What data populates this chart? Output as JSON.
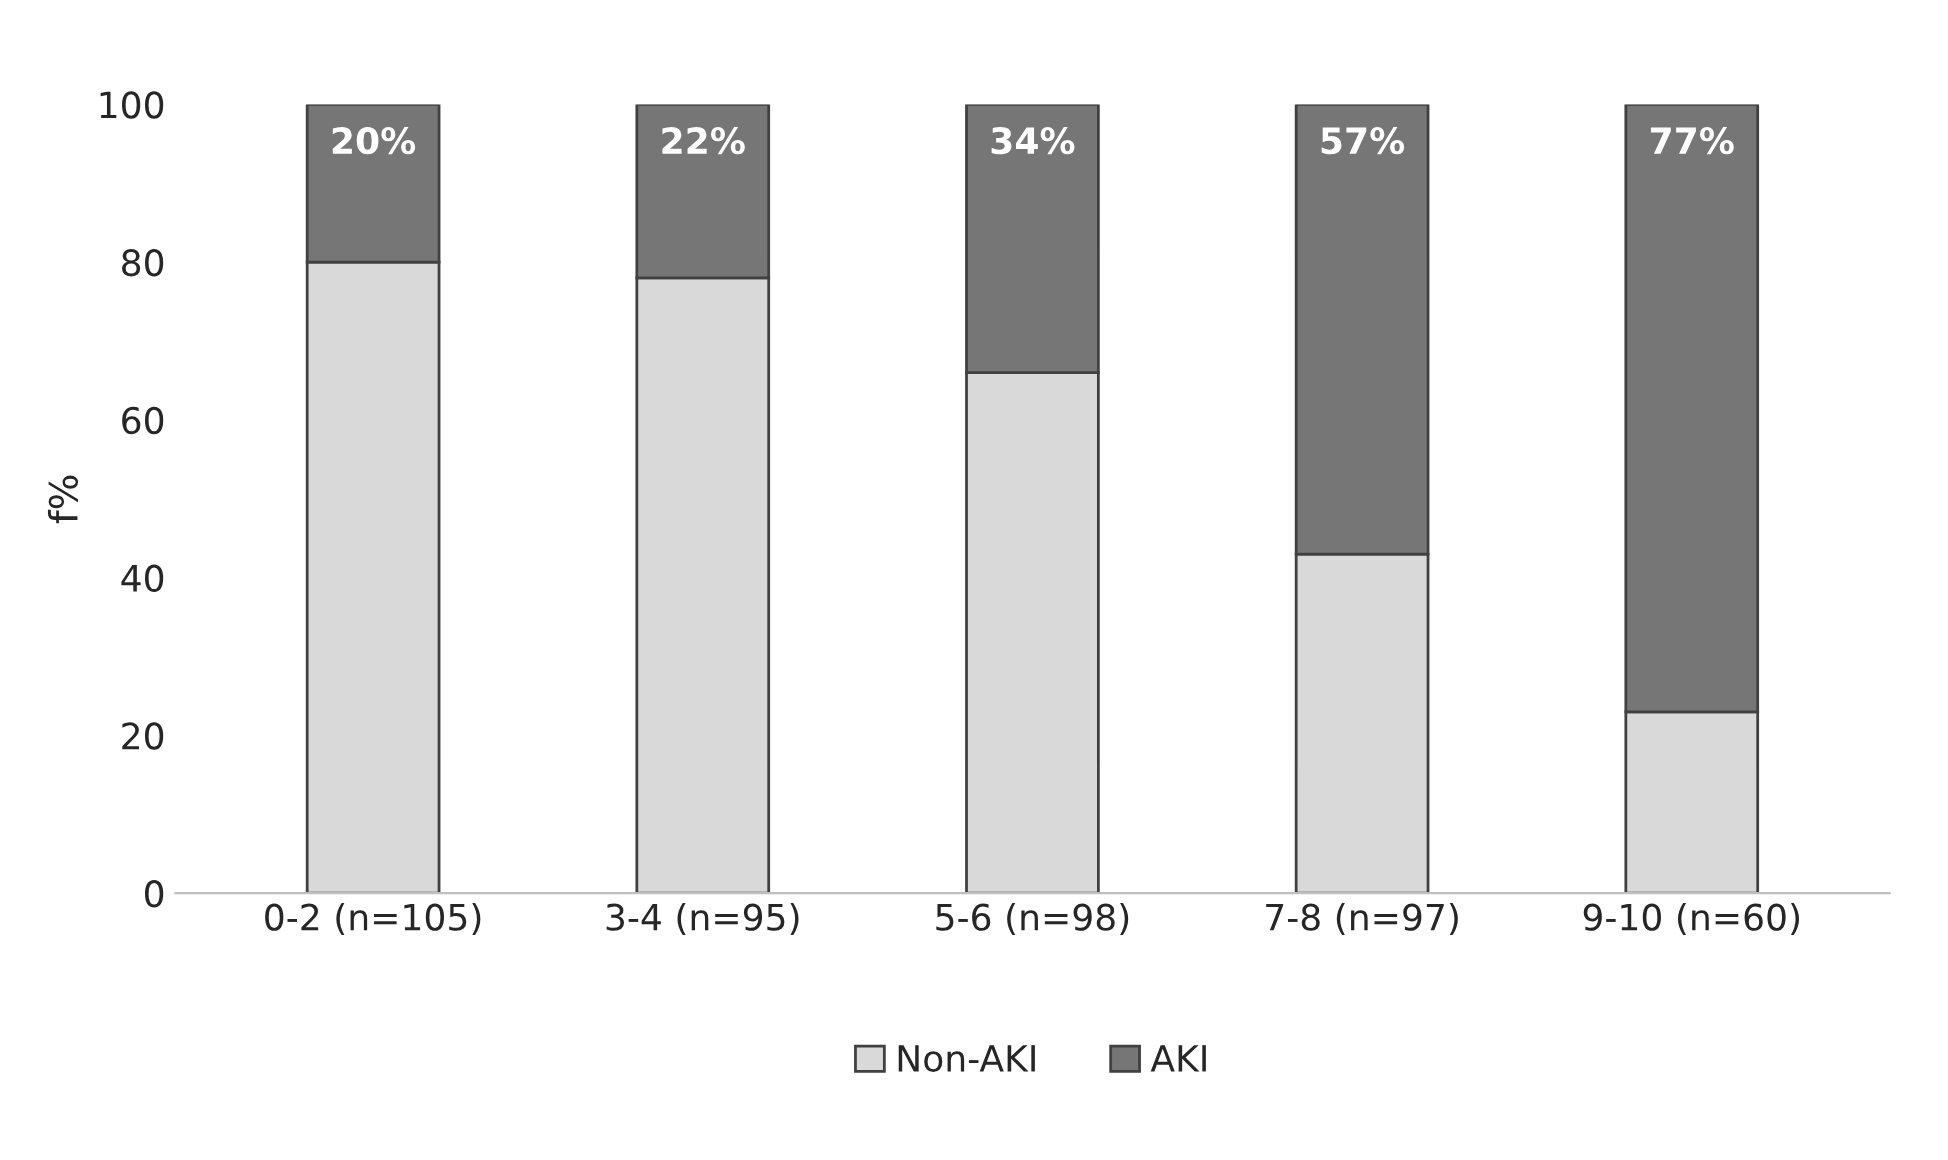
{
  "chart_data": {
    "type": "bar",
    "stacked": true,
    "ylabel": "f%",
    "categories": [
      "0-2 (n=105)",
      "3-4 (n=95)",
      "5-6 (n=98)",
      "7-8 (n=97)",
      "9-10 (n=60)"
    ],
    "series": [
      {
        "name": "Non-AKI",
        "color": "#d9d9d9",
        "values": [
          80,
          78,
          66,
          43,
          23
        ]
      },
      {
        "name": "AKI",
        "color": "#767676",
        "values": [
          20,
          22,
          34,
          57,
          77
        ],
        "value_labels": [
          "20%",
          "22%",
          "34%",
          "57%",
          "77%"
        ]
      }
    ],
    "ylim": [
      0,
      100
    ],
    "yticks": [
      0,
      20,
      40,
      60,
      80,
      100
    ],
    "grid": false,
    "legend": "bottom"
  }
}
